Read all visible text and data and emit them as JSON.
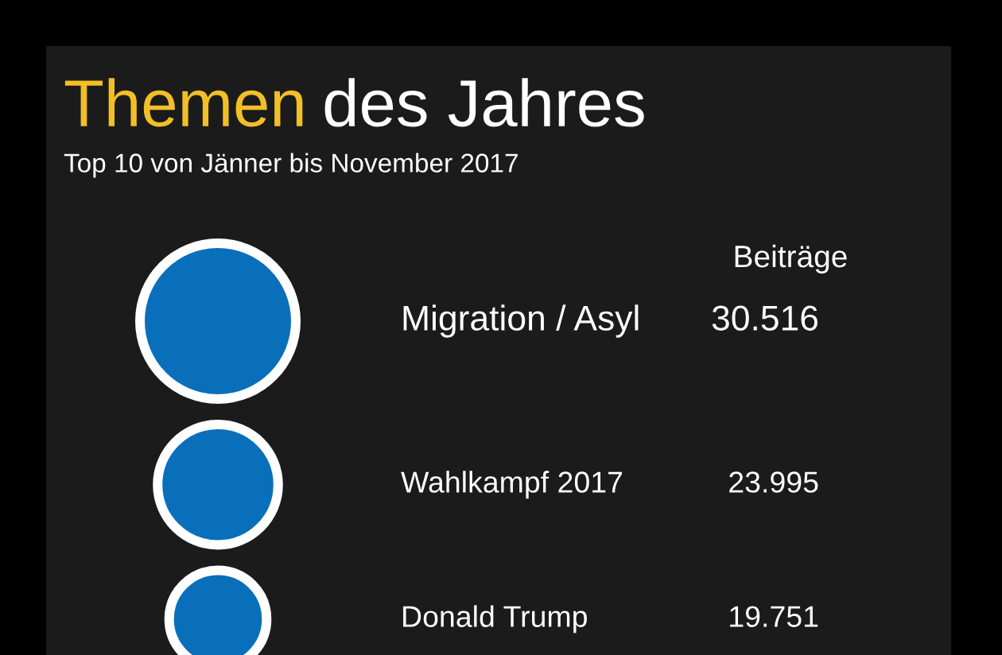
{
  "chart_data": {
    "type": "other",
    "title": "Themen des Jahres",
    "subtitle": "Top 10 von Jänner bis November 2017",
    "categories": [
      "Migration / Asyl",
      "Wahlkampf 2017",
      "Donald Trump"
    ],
    "values": [
      30516,
      23995,
      19751
    ],
    "value_labels": [
      "30.516",
      "23.995",
      "19.751"
    ],
    "color": "#0a6fba",
    "annotations": [
      "Beiträge"
    ]
  }
}
